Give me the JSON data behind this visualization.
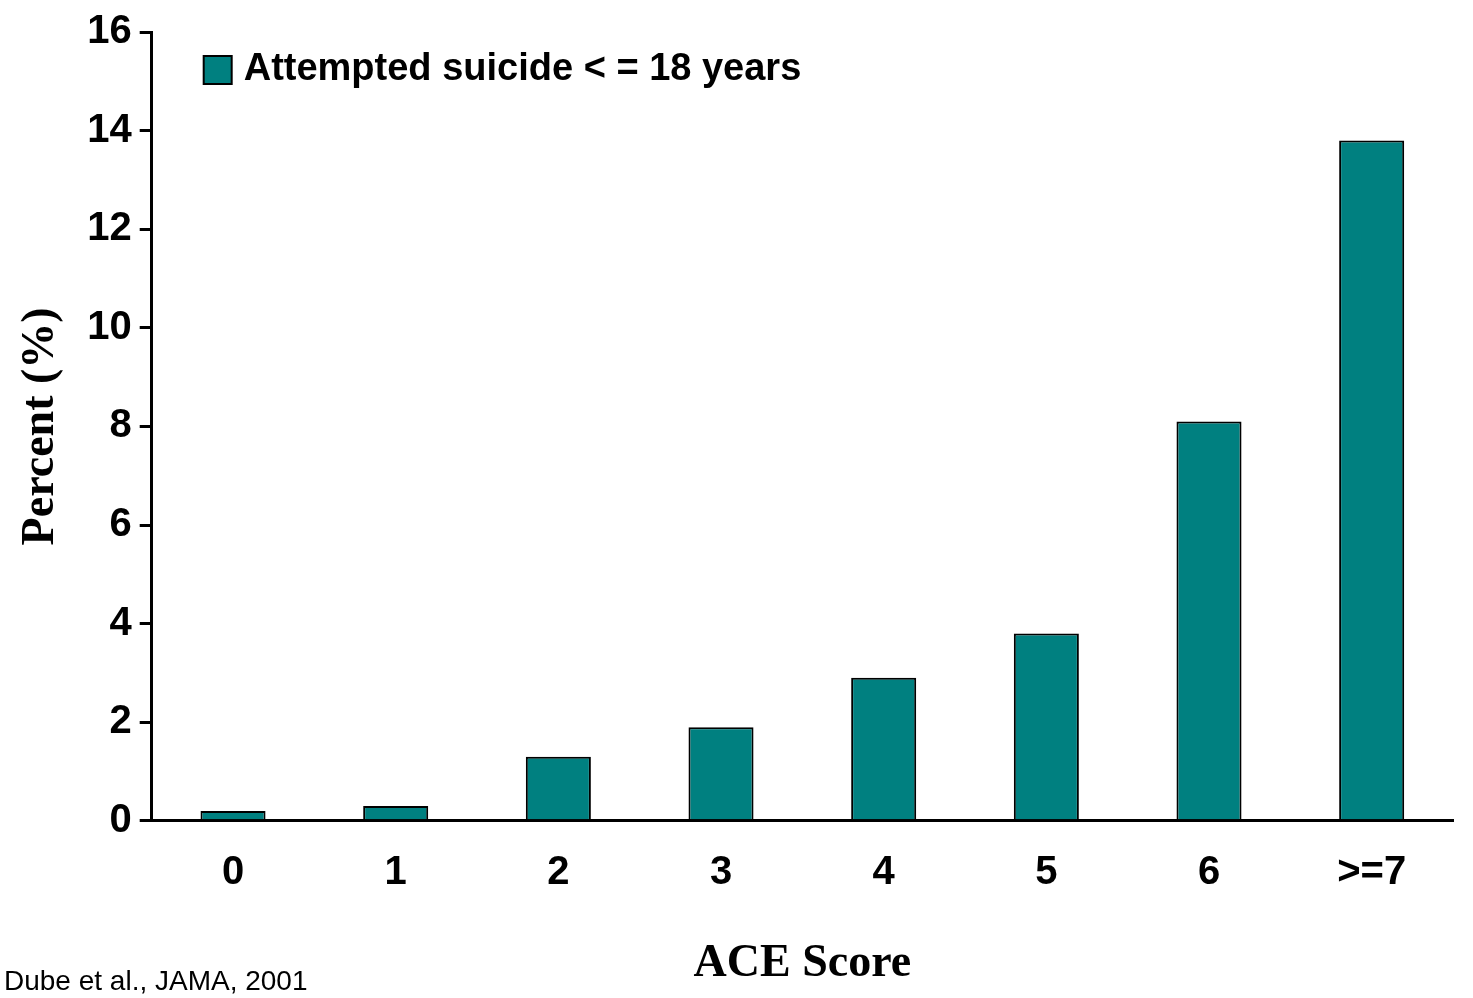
{
  "chart_data": {
    "type": "bar",
    "xlabel": "ACE Score",
    "ylabel": "Percent (%)",
    "categories": [
      "0",
      "1",
      "2",
      "3",
      "4",
      "5",
      "6",
      ">=7"
    ],
    "series": [
      {
        "name": "Attempted suicide < = 18 years",
        "color": "#008080",
        "values": [
          0.2,
          0.3,
          1.3,
          1.9,
          2.9,
          3.8,
          8.1,
          13.8
        ]
      }
    ],
    "ylim": [
      0,
      16
    ],
    "yticks": [
      0,
      2,
      4,
      6,
      8,
      10,
      12,
      14,
      16
    ],
    "grid": false,
    "legend": "top left",
    "annotations": [
      "Dube et al., JAMA, 2001"
    ]
  }
}
